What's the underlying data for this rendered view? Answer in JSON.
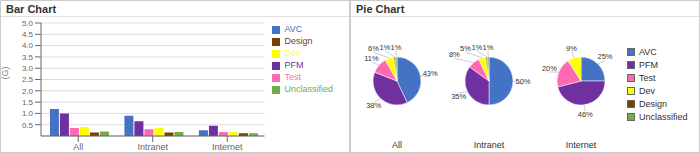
{
  "chart_data": [
    {
      "type": "bar",
      "title": "Bar Chart",
      "categories": [
        "All",
        "Intranet",
        "Internet"
      ],
      "series": [
        {
          "name": "AVC",
          "color": "#4472c4",
          "values": [
            1.2,
            0.9,
            0.25
          ]
        },
        {
          "name": "PFM",
          "color": "#7030a0",
          "values": [
            1.0,
            0.65,
            0.45
          ]
        },
        {
          "name": "Test",
          "color": "#ff69b4",
          "values": [
            0.35,
            0.3,
            0.18
          ]
        },
        {
          "name": "Dev",
          "color": "#ffff00",
          "values": [
            0.4,
            0.35,
            0.18
          ]
        },
        {
          "name": "Design",
          "color": "#7b3f00",
          "values": [
            0.15,
            0.15,
            0.12
          ]
        },
        {
          "name": "Unclassified",
          "color": "#70ad47",
          "values": [
            0.2,
            0.18,
            0.12
          ]
        }
      ],
      "ylabel": "(G)",
      "ylim": [
        0,
        5.0
      ],
      "yticks": [
        0.5,
        {
          "value": 1.0,
          "label": "1.0"
        },
        1.5,
        {
          "value": 2.0,
          "label": "2.0"
        },
        2.5,
        {
          "value": 3.0,
          "label": "3.0"
        },
        3.5,
        {
          "value": 4.0,
          "label": "4.0"
        },
        4.5,
        {
          "value": 5.0,
          "label": "5.0"
        }
      ],
      "grid": true,
      "legend": "upper right"
    },
    {
      "type": "pie",
      "title": "Pie Chart",
      "categories": [
        "AVC",
        "PFM",
        "Test",
        "Dev",
        "Design",
        "Unclassified"
      ],
      "colors": [
        "#4472c4",
        "#7030a0",
        "#ff69b4",
        "#ffff00",
        "#7b3f00",
        "#70ad47"
      ],
      "series": [
        {
          "name": "All",
          "values": [
            43,
            38,
            11,
            6,
            1,
            1
          ],
          "value_labels": [
            "43%",
            "38%",
            "11%",
            "6%",
            "1%",
            "1%"
          ]
        },
        {
          "name": "Intranet",
          "values": [
            50,
            35,
            8,
            5,
            1,
            1
          ],
          "value_labels": [
            "50%",
            "35%",
            "8%",
            "5%",
            "1%",
            "1%"
          ]
        },
        {
          "name": "Internet",
          "values": [
            25,
            46,
            20,
            9,
            0,
            0
          ],
          "value_labels": [
            "25%",
            "46%",
            "20%",
            "9%",
            null,
            null
          ]
        }
      ],
      "data_labels": true,
      "legend": "right"
    }
  ]
}
